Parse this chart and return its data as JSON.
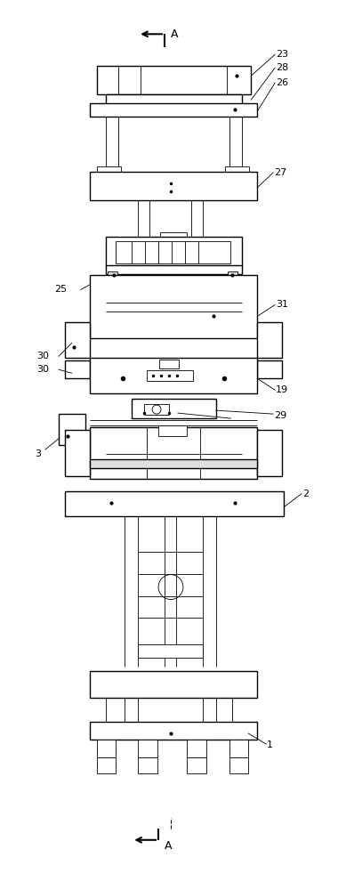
{
  "bg_color": "#ffffff",
  "line_color": "#000000",
  "lw": 1.0,
  "tlw": 0.6,
  "fig_width": 3.8,
  "fig_height": 10.0
}
